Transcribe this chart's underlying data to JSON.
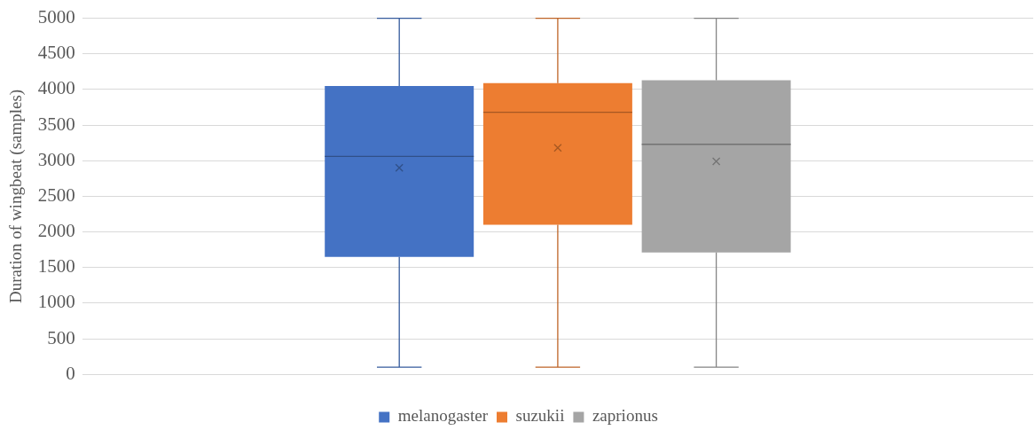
{
  "chart_data": {
    "type": "box",
    "ylabel": "Duration of wingbeat (samples)",
    "categories": [
      null
    ],
    "ylim": [
      0,
      5000
    ],
    "yticks": [
      0,
      500,
      1000,
      1500,
      2000,
      2500,
      3000,
      3500,
      4000,
      4500,
      5000
    ],
    "grid": "y",
    "legend": "bottom",
    "series": [
      {
        "name": "melanogaster",
        "color": "#4472c4",
        "boxes": [
          {
            "low": 100,
            "q1": 1650,
            "median": 3060,
            "q3": 4050,
            "high": 5000,
            "mean": 2900
          }
        ]
      },
      {
        "name": "suzukii",
        "color": "#ed7d31",
        "boxes": [
          {
            "low": 100,
            "q1": 2100,
            "median": 3680,
            "q3": 4090,
            "high": 5000,
            "mean": 3180
          }
        ]
      },
      {
        "name": "zaprionus",
        "color": "#a5a5a5",
        "boxes": [
          {
            "low": 100,
            "q1": 1710,
            "median": 3230,
            "q3": 4130,
            "high": 5000,
            "mean": 2990
          }
        ]
      }
    ]
  }
}
